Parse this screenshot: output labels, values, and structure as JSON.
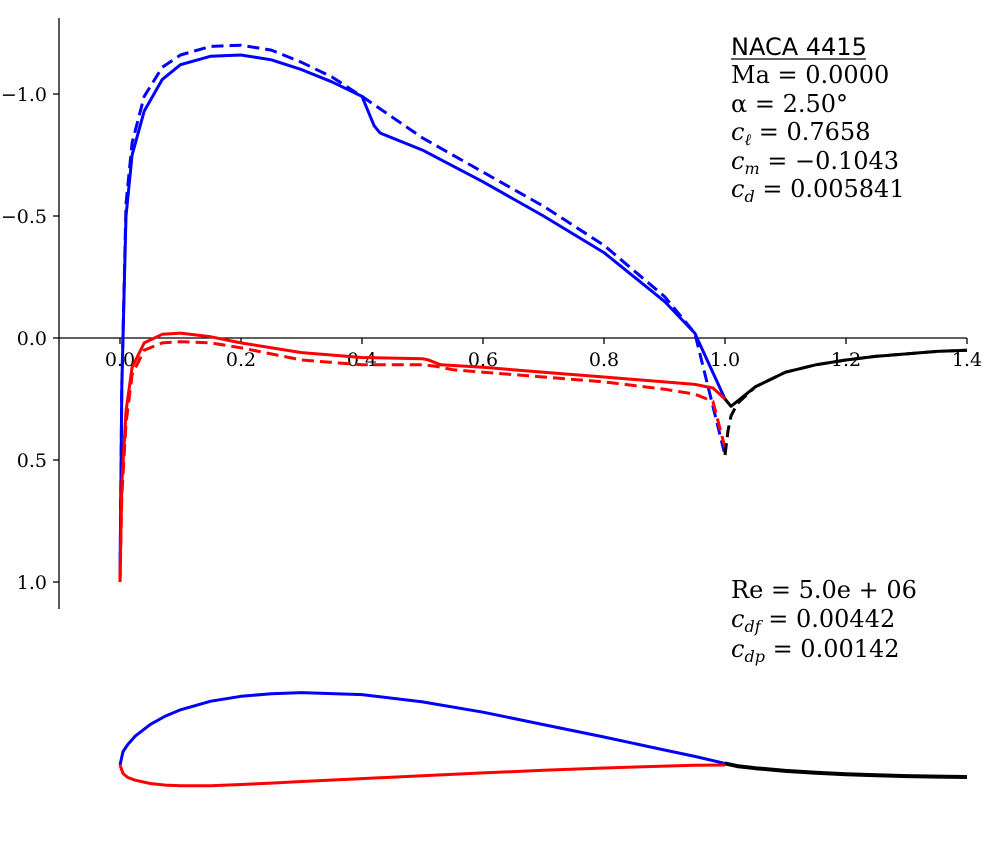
{
  "chart_data": [
    {
      "type": "line",
      "title": "",
      "xlabel": "",
      "ylabel": "",
      "xlim": [
        -0.1,
        1.4
      ],
      "ylim": [
        1.1,
        -1.3
      ],
      "y_inverted": true,
      "grid": false,
      "x_ticks": [
        "0.0",
        "0.2",
        "0.4",
        "0.6",
        "0.8",
        "1.0",
        "1.2",
        "1.4"
      ],
      "y_ticks": [
        "−1.0",
        "−0.5",
        "0.0",
        "0.5",
        "1.0"
      ],
      "colors": {
        "upper": "#0000ff",
        "lower": "#ff0000",
        "wake": "#000000"
      },
      "series": [
        {
          "surface": "upper",
          "style": "solid",
          "color": "#0000ff",
          "x": [
            0.0,
            0.003,
            0.01,
            0.02,
            0.04,
            0.07,
            0.1,
            0.15,
            0.2,
            0.25,
            0.3,
            0.35,
            0.4,
            0.42,
            0.43,
            0.5,
            0.6,
            0.7,
            0.8,
            0.9,
            0.95,
            1.0
          ],
          "y": [
            1.0,
            0.2,
            -0.5,
            -0.75,
            -0.93,
            -1.06,
            -1.12,
            -1.155,
            -1.16,
            -1.14,
            -1.1,
            -1.05,
            -0.99,
            -0.87,
            -0.84,
            -0.77,
            -0.64,
            -0.5,
            -0.35,
            -0.15,
            -0.02,
            0.25
          ]
        },
        {
          "surface": "upper",
          "style": "dashed",
          "color": "#0000ff",
          "x": [
            0.0,
            0.003,
            0.01,
            0.02,
            0.04,
            0.07,
            0.1,
            0.15,
            0.2,
            0.25,
            0.3,
            0.35,
            0.4,
            0.5,
            0.6,
            0.7,
            0.8,
            0.9,
            0.95,
            1.0
          ],
          "y": [
            1.0,
            0.2,
            -0.55,
            -0.8,
            -0.99,
            -1.11,
            -1.16,
            -1.195,
            -1.2,
            -1.18,
            -1.13,
            -1.07,
            -0.99,
            -0.82,
            -0.68,
            -0.54,
            -0.38,
            -0.17,
            -0.02,
            0.48
          ]
        },
        {
          "surface": "lower",
          "style": "solid",
          "color": "#ff0000",
          "x": [
            0.0,
            0.003,
            0.01,
            0.02,
            0.04,
            0.07,
            0.1,
            0.15,
            0.2,
            0.3,
            0.4,
            0.5,
            0.51,
            0.53,
            0.6,
            0.7,
            0.8,
            0.9,
            0.95,
            0.98,
            1.0
          ],
          "y": [
            1.0,
            0.6,
            0.3,
            0.12,
            0.02,
            -0.015,
            -0.02,
            -0.005,
            0.02,
            0.06,
            0.08,
            0.085,
            0.09,
            0.11,
            0.12,
            0.14,
            0.16,
            0.18,
            0.19,
            0.205,
            0.25
          ]
        },
        {
          "surface": "lower",
          "style": "dashed",
          "color": "#ff0000",
          "x": [
            0.0,
            0.003,
            0.01,
            0.02,
            0.04,
            0.07,
            0.1,
            0.15,
            0.2,
            0.3,
            0.4,
            0.5,
            0.52,
            0.55,
            0.6,
            0.7,
            0.8,
            0.9,
            0.95,
            0.98,
            1.0
          ],
          "y": [
            1.0,
            0.65,
            0.35,
            0.15,
            0.05,
            0.02,
            0.015,
            0.02,
            0.04,
            0.09,
            0.11,
            0.11,
            0.115,
            0.13,
            0.14,
            0.16,
            0.18,
            0.21,
            0.23,
            0.26,
            0.45
          ]
        },
        {
          "surface": "wake",
          "style": "solid",
          "color": "#000000",
          "x": [
            1.0,
            1.01,
            1.02,
            1.05,
            1.1,
            1.15,
            1.2,
            1.25,
            1.3,
            1.35,
            1.4
          ],
          "y": [
            0.25,
            0.28,
            0.26,
            0.2,
            0.14,
            0.11,
            0.09,
            0.075,
            0.065,
            0.055,
            0.05
          ]
        },
        {
          "surface": "wake",
          "style": "dashed",
          "color": "#000000",
          "x": [
            1.0,
            1.005,
            1.01,
            1.02,
            1.05,
            1.1,
            1.15,
            1.2,
            1.25,
            1.3,
            1.35,
            1.4
          ],
          "y": [
            0.48,
            0.38,
            0.32,
            0.27,
            0.2,
            0.14,
            0.11,
            0.09,
            0.075,
            0.065,
            0.055,
            0.05
          ]
        }
      ]
    },
    {
      "type": "line",
      "title": "",
      "xlim": [
        -0.1,
        1.4
      ],
      "series": [
        {
          "surface": "upper",
          "color": "#0000ff",
          "x": [
            0.0,
            0.005,
            0.0125,
            0.025,
            0.05,
            0.075,
            0.1,
            0.15,
            0.2,
            0.25,
            0.3,
            0.4,
            0.5,
            0.6,
            0.7,
            0.8,
            0.9,
            0.95,
            1.0
          ],
          "y": [
            0.0,
            0.0247,
            0.0376,
            0.0533,
            0.0752,
            0.0906,
            0.1023,
            0.1182,
            0.1272,
            0.1321,
            0.1341,
            0.1303,
            0.1168,
            0.0978,
            0.0748,
            0.0519,
            0.0278,
            0.016,
            0.003
          ]
        },
        {
          "surface": "lower",
          "color": "#ff0000",
          "x": [
            0.0,
            0.005,
            0.0125,
            0.025,
            0.05,
            0.075,
            0.1,
            0.15,
            0.2,
            0.25,
            0.3,
            0.4,
            0.5,
            0.6,
            0.7,
            0.8,
            0.9,
            0.95,
            1.0
          ],
          "y": [
            0.0,
            -0.0157,
            -0.0229,
            -0.0281,
            -0.0343,
            -0.0373,
            -0.0385,
            -0.0383,
            -0.0362,
            -0.0335,
            -0.0306,
            -0.0252,
            -0.0198,
            -0.0147,
            -0.0098,
            -0.0056,
            -0.002,
            -0.0005,
            0.0
          ]
        },
        {
          "surface": "wake",
          "color": "#000000",
          "x": [
            1.0,
            1.02,
            1.05,
            1.1,
            1.15,
            1.2,
            1.25,
            1.3,
            1.35,
            1.4
          ],
          "y": [
            0.003,
            -0.002,
            -0.006,
            -0.011,
            -0.0145,
            -0.0172,
            -0.019,
            -0.0205,
            -0.0215,
            -0.0222
          ]
        }
      ]
    }
  ],
  "info": {
    "airfoil": "NACA 4415",
    "ma": "Ma = 0.0000",
    "alpha": "α = 2.50°",
    "cl_sym": "c",
    "cl_sub": "ℓ",
    "cl_val": " = 0.7658",
    "cm_sym": "c",
    "cm_sub": "m",
    "cm_val": " = −0.1043",
    "cd_sym": "c",
    "cd_sub": "d",
    "cd_val": " = 0.005841",
    "re": "Re = 5.0e + 06",
    "cdf_sym": "c",
    "cdf_sub": "df",
    "cdf_val": " = 0.00442",
    "cdp_sym": "c",
    "cdp_sub": "dp",
    "cdp_val": " = 0.00142"
  }
}
